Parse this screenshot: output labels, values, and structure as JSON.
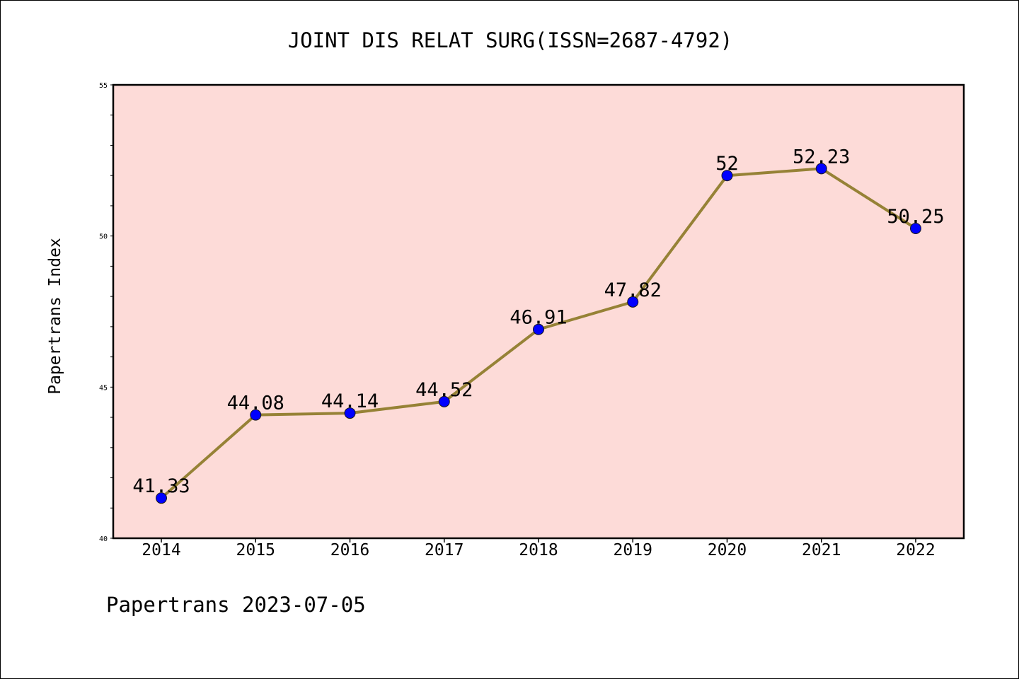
{
  "chart_data": {
    "type": "line",
    "title": "JOINT DIS RELAT SURG(ISSN=2687-4792)",
    "xlabel": "",
    "ylabel": "Papertrans Index",
    "categories": [
      "2014",
      "2015",
      "2016",
      "2017",
      "2018",
      "2019",
      "2020",
      "2021",
      "2022"
    ],
    "series": [
      {
        "values": [
          41.33,
          44.08,
          44.14,
          44.52,
          46.91,
          47.82,
          52,
          52.23,
          50.25
        ],
        "labels": [
          "41.33",
          "44.08",
          "44.14",
          "44.52",
          "46.91",
          "47.82",
          "52",
          "52.23",
          "50.25"
        ]
      }
    ],
    "ylim": [
      40,
      55
    ],
    "yticks": [
      "40",
      "45",
      "50",
      "55"
    ],
    "grid": false,
    "legend": "none"
  },
  "footer": {
    "text": "Papertrans 2023-07-05"
  },
  "colors": {
    "plot_background": "#fddbd8",
    "line": "#968236",
    "marker": "#0000ff",
    "text": "#000000"
  }
}
